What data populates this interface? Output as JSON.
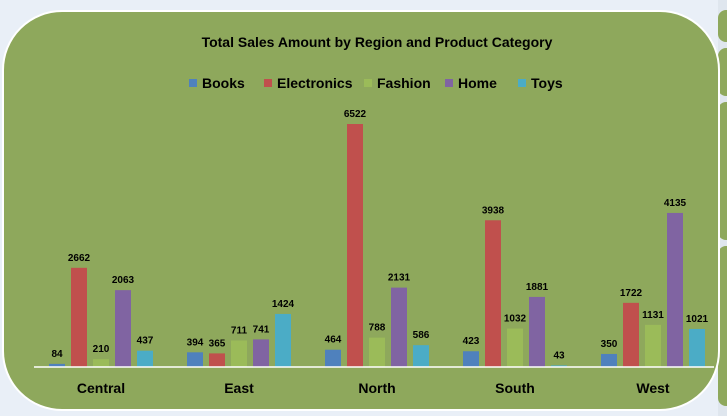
{
  "chart_data": {
    "type": "bar",
    "title": "Total Sales Amount by Region and Product Category",
    "legend_position": "top",
    "grid": false,
    "categories": [
      "Central",
      "East",
      "North",
      "South",
      "West"
    ],
    "series": [
      {
        "name": "Books",
        "color": "#4f81bd",
        "values": [
          84,
          394,
          464,
          423,
          350
        ]
      },
      {
        "name": "Electronics",
        "color": "#c0504d",
        "values": [
          2662,
          365,
          6522,
          3938,
          1722
        ]
      },
      {
        "name": "Fashion",
        "color": "#9bbb59",
        "values": [
          210,
          711,
          788,
          1032,
          1131
        ]
      },
      {
        "name": "Home",
        "color": "#8064a2",
        "values": [
          2063,
          741,
          2131,
          1881,
          4135
        ]
      },
      {
        "name": "Toys",
        "color": "#4bacc6",
        "values": [
          437,
          1424,
          586,
          43,
          1021
        ]
      }
    ],
    "ylim": [
      0,
      6522
    ]
  },
  "colors": {
    "background": "#8ea85c",
    "axis_line": "#ffffff"
  }
}
